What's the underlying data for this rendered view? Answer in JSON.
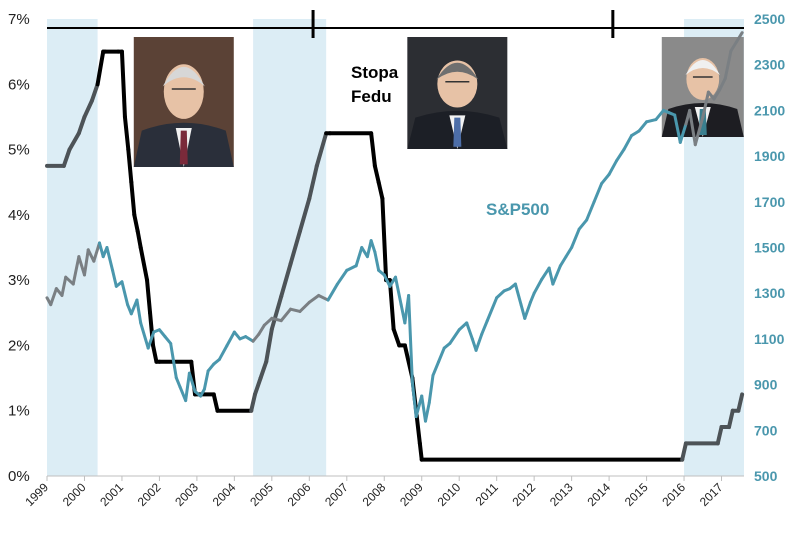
{
  "chart_data": {
    "type": "line",
    "title": "",
    "annotations": [
      "Stopa",
      "Fedu",
      "S&P500"
    ],
    "x_ticks": [
      "1999",
      "2000",
      "2001",
      "2002",
      "2003",
      "2004",
      "2005",
      "2006",
      "2007",
      "2008",
      "2009",
      "2010",
      "2011",
      "2012",
      "2013",
      "2014",
      "2015",
      "2016",
      "2017"
    ],
    "y_left": {
      "ticks": [
        "0%",
        "1%",
        "2%",
        "3%",
        "4%",
        "5%",
        "6%",
        "7%"
      ],
      "range": [
        0,
        7
      ],
      "unit": "%"
    },
    "y_right": {
      "ticks": [
        "500",
        "700",
        "900",
        "1100",
        "1300",
        "1500",
        "1700",
        "1900",
        "2100",
        "2300",
        "2500"
      ],
      "range": [
        500,
        2500
      ]
    },
    "grid": false,
    "shaded_periods": [
      [
        1999.0,
        2000.35
      ],
      [
        2004.5,
        2006.45
      ],
      [
        2016.0,
        2017.6
      ]
    ],
    "term_markers": [
      2006.1,
      2014.1
    ],
    "series": [
      {
        "name": "Stopa Fedu",
        "axis": "left",
        "color": "#000000",
        "x": [
          1999.0,
          1999.45,
          1999.6,
          1999.85,
          2000.0,
          2000.2,
          2000.35,
          2000.5,
          2000.55,
          2000.9,
          2001.0,
          2001.08,
          2001.17,
          2001.25,
          2001.33,
          2001.42,
          2001.5,
          2001.67,
          2001.75,
          2001.83,
          2001.92,
          2002.0,
          2002.85,
          2002.95,
          2003.45,
          2003.55,
          2004.45,
          2004.55,
          2004.7,
          2004.85,
          2005.0,
          2005.25,
          2005.5,
          2005.75,
          2006.0,
          2006.2,
          2006.45,
          2006.55,
          2007.65,
          2007.75,
          2007.85,
          2007.95,
          2008.05,
          2008.15,
          2008.25,
          2008.4,
          2008.55,
          2008.75,
          2008.85,
          2008.95,
          2009.0,
          2015.95,
          2016.05,
          2016.9,
          2017.0,
          2017.2,
          2017.3,
          2017.45,
          2017.55
        ],
        "values": [
          4.75,
          4.75,
          5.0,
          5.25,
          5.5,
          5.75,
          6.0,
          6.5,
          6.5,
          6.5,
          6.5,
          5.5,
          5.0,
          4.5,
          4.0,
          3.75,
          3.5,
          3.0,
          2.5,
          2.0,
          1.75,
          1.75,
          1.75,
          1.25,
          1.25,
          1.0,
          1.0,
          1.25,
          1.5,
          1.75,
          2.25,
          2.75,
          3.25,
          3.75,
          4.25,
          4.75,
          5.25,
          5.25,
          5.25,
          4.75,
          4.5,
          4.25,
          3.0,
          3.0,
          2.25,
          2.0,
          2.0,
          1.5,
          1.0,
          0.5,
          0.25,
          0.25,
          0.5,
          0.5,
          0.75,
          0.75,
          1.0,
          1.0,
          1.25
        ]
      },
      {
        "name": "S&P500",
        "axis": "right",
        "color": "#4a97ad",
        "x": [
          1999.0,
          1999.1,
          1999.25,
          1999.4,
          1999.5,
          1999.7,
          1999.85,
          2000.0,
          2000.1,
          2000.25,
          2000.4,
          2000.5,
          2000.6,
          2000.75,
          2000.85,
          2001.0,
          2001.15,
          2001.25,
          2001.4,
          2001.5,
          2001.7,
          2001.85,
          2002.0,
          2002.15,
          2002.3,
          2002.45,
          2002.55,
          2002.7,
          2002.8,
          2002.95,
          2003.1,
          2003.2,
          2003.3,
          2003.45,
          2003.6,
          2003.8,
          2004.0,
          2004.15,
          2004.3,
          2004.5,
          2004.65,
          2004.8,
          2005.0,
          2005.25,
          2005.5,
          2005.75,
          2006.0,
          2006.25,
          2006.5,
          2006.75,
          2007.0,
          2007.25,
          2007.4,
          2007.55,
          2007.65,
          2007.75,
          2007.85,
          2008.0,
          2008.15,
          2008.3,
          2008.45,
          2008.55,
          2008.65,
          2008.75,
          2008.85,
          2009.0,
          2009.1,
          2009.2,
          2009.3,
          2009.45,
          2009.6,
          2009.75,
          2010.0,
          2010.2,
          2010.35,
          2010.45,
          2010.6,
          2010.75,
          2011.0,
          2011.2,
          2011.35,
          2011.5,
          2011.65,
          2011.75,
          2011.9,
          2012.0,
          2012.2,
          2012.4,
          2012.5,
          2012.7,
          2012.85,
          2013.0,
          2013.2,
          2013.4,
          2013.6,
          2013.8,
          2014.0,
          2014.2,
          2014.4,
          2014.6,
          2014.8,
          2015.0,
          2015.25,
          2015.45,
          2015.6,
          2015.75,
          2015.9,
          2016.05,
          2016.15,
          2016.3,
          2016.5,
          2016.65,
          2016.8,
          2016.95,
          2017.1,
          2017.25,
          2017.4,
          2017.55
        ],
        "values": [
          1280,
          1250,
          1320,
          1290,
          1370,
          1340,
          1460,
          1380,
          1490,
          1440,
          1520,
          1460,
          1500,
          1400,
          1330,
          1350,
          1250,
          1210,
          1270,
          1170,
          1060,
          1130,
          1140,
          1110,
          1080,
          930,
          890,
          830,
          950,
          870,
          850,
          880,
          960,
          990,
          1010,
          1070,
          1130,
          1100,
          1110,
          1090,
          1120,
          1160,
          1190,
          1180,
          1230,
          1220,
          1260,
          1290,
          1270,
          1340,
          1400,
          1420,
          1500,
          1460,
          1530,
          1480,
          1400,
          1380,
          1330,
          1370,
          1250,
          1170,
          1290,
          910,
          760,
          850,
          740,
          820,
          940,
          1000,
          1060,
          1080,
          1140,
          1170,
          1100,
          1050,
          1120,
          1180,
          1280,
          1310,
          1320,
          1340,
          1250,
          1190,
          1260,
          1300,
          1360,
          1410,
          1340,
          1420,
          1460,
          1500,
          1580,
          1620,
          1700,
          1780,
          1820,
          1880,
          1930,
          1990,
          2010,
          2050,
          2060,
          2100,
          2090,
          2080,
          1960,
          2040,
          2100,
          1950,
          2070,
          2180,
          2150,
          2190,
          2240,
          2360,
          2400,
          2440
        ]
      }
    ]
  },
  "colors": {
    "fed_rate": "#000000",
    "sp500": "#4a97ad",
    "sp500_on_shade": "#7a7f83",
    "shade": "#dcedf5",
    "right_axis": "#4a97ad"
  },
  "portraits": [
    {
      "center_year": 2002.65,
      "portrait": "greenspan-portrait"
    },
    {
      "center_year": 2009.95,
      "portrait": "bernanke-portrait"
    },
    {
      "center_year": 2016.5,
      "portrait": "yellen-portrait"
    }
  ]
}
